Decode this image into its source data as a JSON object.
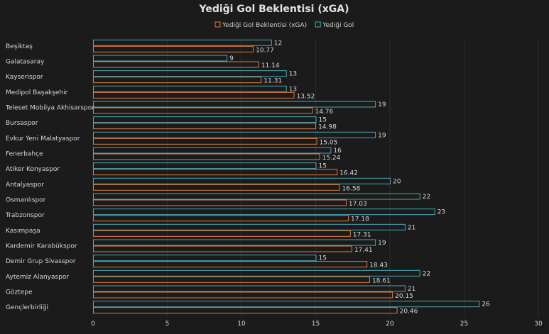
{
  "chart_data": {
    "type": "bar",
    "orientation": "horizontal",
    "title": "Yediği Gol Beklentisi (xGA)",
    "categories": [
      "Beşiktaş",
      "Galatasaray",
      "Kayserispor",
      "Medipol Başakşehir",
      "Teleset Mobilya Akhisarspor",
      "Bursaspor",
      "Evkur Yeni Malatyaspor",
      "Fenerbahçe",
      "Atiker Konyaspor",
      "Antalyaspor",
      "Osmanlıspor",
      "Trabzonspor",
      "Kasımpaşa",
      "Kardemir Karabükspor",
      "Demir Grup Sivasspor",
      "Aytemiz Alanyaspor",
      "Göztepe",
      "Gençlerbirliği"
    ],
    "series": [
      {
        "name": "Yediği Gol",
        "color": "#4aa8b8",
        "values": [
          12,
          9,
          13,
          13,
          19,
          15,
          19,
          16,
          15,
          20,
          22,
          23,
          21,
          19,
          15,
          22,
          21,
          26
        ]
      },
      {
        "name": "Yediği Gol Beklentisi (xGA)",
        "color": "#e07a3c",
        "values": [
          10.77,
          11.14,
          11.31,
          13.52,
          14.76,
          14.98,
          15.05,
          15.24,
          16.42,
          16.58,
          17.03,
          17.18,
          17.31,
          17.41,
          18.43,
          18.61,
          20.15,
          20.46
        ]
      }
    ],
    "legend_order": [
      "Yediği Gol Beklentisi (xGA)",
      "Yediği Gol"
    ],
    "legend_position": "top",
    "xlim": [
      0,
      30
    ],
    "xticks": [
      0,
      5,
      10,
      15,
      20,
      25,
      30
    ],
    "grid": true
  },
  "colors": {
    "background": "#1b1b1b",
    "gridline": "#2c2c2c",
    "text": "#d6d6d6"
  }
}
